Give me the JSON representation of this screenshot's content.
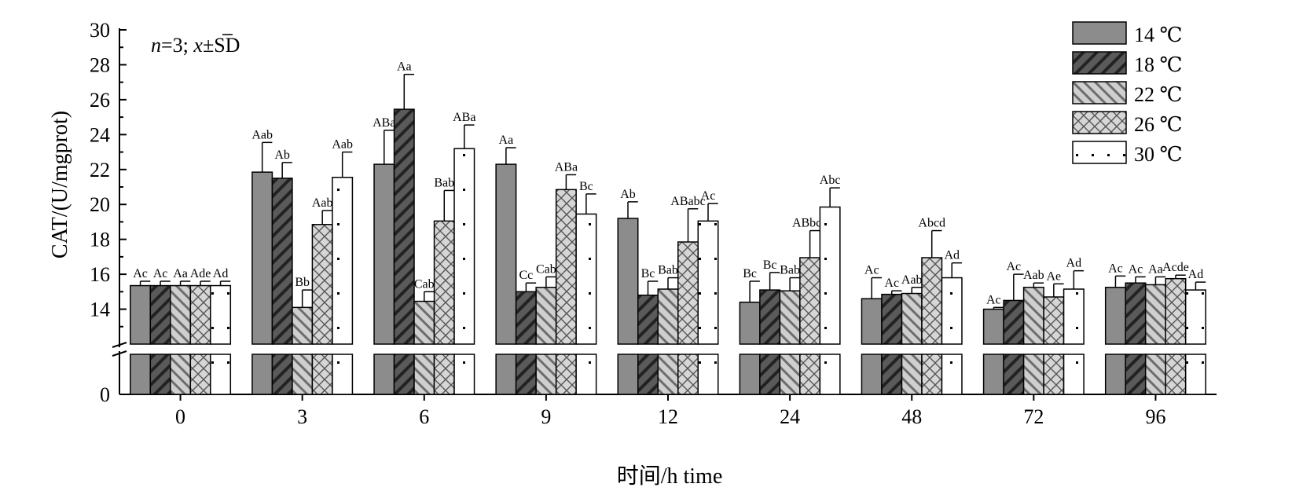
{
  "chart_data": {
    "type": "bar",
    "xlabel": "时间/h time",
    "ylabel": "CAT/(U/mgprot)",
    "annotation": "n=3; x̄±SD",
    "note_parts": {
      "n": "n",
      "eq": "=3; ",
      "xbar": "x",
      "pm": "±SD"
    },
    "ylim": [
      0,
      30
    ],
    "y_axis_break": [
      0,
      12
    ],
    "y_ticks": [
      "0",
      "14",
      "16",
      "18",
      "20",
      "22",
      "24",
      "26",
      "28",
      "30"
    ],
    "categories": [
      "0",
      "3",
      "6",
      "9",
      "12",
      "24",
      "48",
      "72",
      "96"
    ],
    "legend_position": "top-right",
    "series": [
      {
        "name": "14 ℃",
        "pattern": "solid",
        "values": [
          15.35,
          21.85,
          22.3,
          22.3,
          19.2,
          14.4,
          14.6,
          14.0,
          15.25
        ],
        "errors": [
          0.25,
          1.7,
          1.95,
          0.95,
          0.95,
          1.2,
          1.2,
          0.1,
          0.65
        ],
        "labels": [
          "Ac",
          "Aab",
          "ABa",
          "Aa",
          "Ab",
          "Bc",
          "Ac",
          "Ac",
          "Ac"
        ]
      },
      {
        "name": "18 ℃",
        "pattern": "diag-dense",
        "values": [
          15.35,
          21.5,
          25.45,
          15.0,
          14.8,
          15.1,
          14.85,
          14.5,
          15.5
        ],
        "errors": [
          0.25,
          0.9,
          2.0,
          0.5,
          0.8,
          1.0,
          0.2,
          1.5,
          0.35
        ],
        "labels": [
          "Ac",
          "Ab",
          "Aa",
          "Cc",
          "Bc",
          "Bc",
          "Ac",
          "Ac",
          "Ac"
        ]
      },
      {
        "name": "22 ℃",
        "pattern": "diag-back",
        "values": [
          15.35,
          14.1,
          14.45,
          15.25,
          15.15,
          15.05,
          14.9,
          15.25,
          15.4
        ],
        "errors": [
          0.25,
          1.0,
          0.55,
          0.6,
          0.65,
          0.75,
          0.35,
          0.25,
          0.45
        ],
        "labels": [
          "Aa",
          "Bb",
          "Cab",
          "Cab",
          "Bab",
          "Bab",
          "Aab",
          "Aab",
          "Aa"
        ]
      },
      {
        "name": "26 ℃",
        "pattern": "crosshatch",
        "values": [
          15.35,
          18.85,
          19.05,
          20.85,
          17.85,
          16.95,
          16.95,
          14.7,
          15.75
        ],
        "errors": [
          0.25,
          0.8,
          1.75,
          0.85,
          1.9,
          1.55,
          1.55,
          0.75,
          0.2
        ],
        "labels": [
          "Ade",
          "Aab",
          "Bab",
          "ABa",
          "ABabc",
          "ABbcd",
          "Abcd",
          "Ae",
          "Acde"
        ]
      },
      {
        "name": "30 ℃",
        "pattern": "dots",
        "values": [
          15.35,
          21.55,
          23.2,
          19.45,
          19.05,
          19.85,
          15.8,
          15.15,
          15.1
        ],
        "errors": [
          0.25,
          1.45,
          1.35,
          1.15,
          1.0,
          1.1,
          0.85,
          1.05,
          0.45
        ],
        "labels": [
          "Ad",
          "Aab",
          "ABa",
          "Bc",
          "Ac",
          "Abc",
          "Ad",
          "Ad",
          "Ad"
        ]
      }
    ]
  }
}
